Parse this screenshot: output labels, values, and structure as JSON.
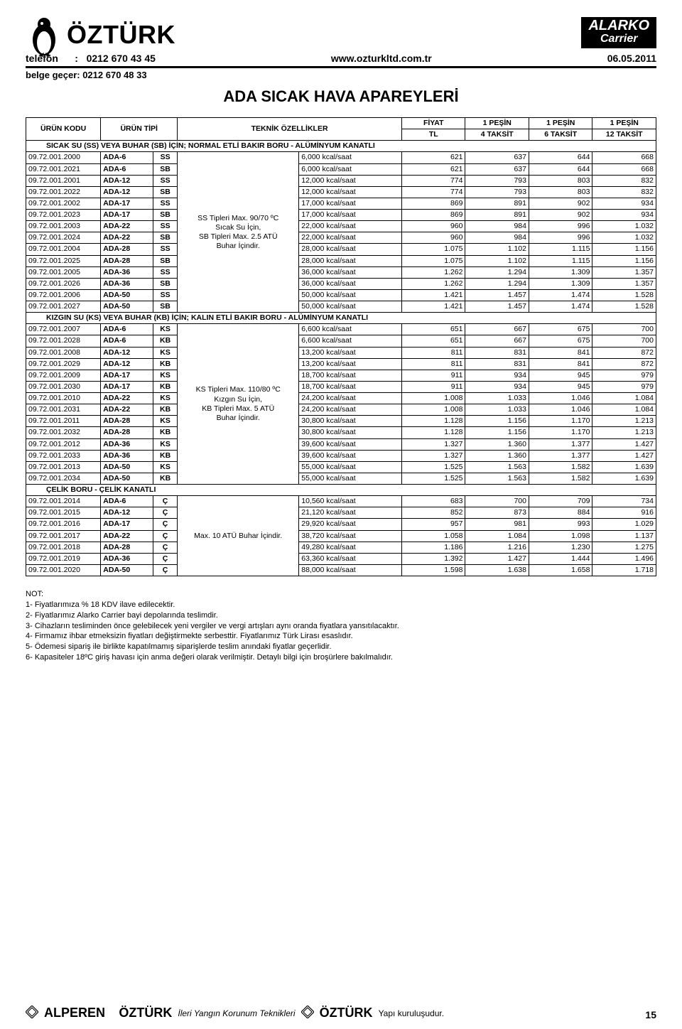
{
  "header": {
    "brand": "ÖZTÜRK",
    "alarko_l1": "ALARKO",
    "alarko_l2": "Carrier",
    "phone_label": "telefon",
    "phone_sep": ":",
    "phone": "0212 670 43 45",
    "url": "www.ozturkltd.com.tr",
    "date": "06.05.2011",
    "belge": "belge geçer: 0212 670 48 33",
    "title": "ADA SICAK HAVA APAREYLERİ"
  },
  "table": {
    "head": {
      "col_code": "ÜRÜN KODU",
      "col_type": "ÜRÜN TİPİ",
      "col_spec": "TEKNİK ÖZELLİKLER",
      "col_fiyat": "FİYAT",
      "col_fiyat2": "TL",
      "col_p1a": "1 PEŞİN",
      "col_p1b": "4 TAKSİT",
      "col_p2a": "1 PEŞİN",
      "col_p2b": "6 TAKSİT",
      "col_p3a": "1 PEŞİN",
      "col_p3b": "12 TAKSİT"
    },
    "section1_title": "SICAK SU (SS) VEYA BUHAR (SB) İÇİN; NORMAL ETLİ BAKIR BORU - ALÜMİNYUM KANATLI",
    "section1_spec_lines": [
      "SS Tipleri Max. 90/70 ºC",
      "Sıcak Su İçin,",
      "SB Tipleri Max. 2.5 ATÜ",
      "Buhar İçindir."
    ],
    "section1_spec_start": 4,
    "section1_rows": [
      {
        "code": "09.72.001.2000",
        "model": "ADA-6",
        "var": "SS",
        "cap": "6,000 kcal/saat",
        "p": [
          "621",
          "637",
          "644",
          "668"
        ]
      },
      {
        "code": "09.72.001.2021",
        "model": "ADA-6",
        "var": "SB",
        "cap": "6,000 kcal/saat",
        "p": [
          "621",
          "637",
          "644",
          "668"
        ]
      },
      {
        "code": "09.72.001.2001",
        "model": "ADA-12",
        "var": "SS",
        "cap": "12,000 kcal/saat",
        "p": [
          "774",
          "793",
          "803",
          "832"
        ]
      },
      {
        "code": "09.72.001.2022",
        "model": "ADA-12",
        "var": "SB",
        "cap": "12,000 kcal/saat",
        "p": [
          "774",
          "793",
          "803",
          "832"
        ]
      },
      {
        "code": "09.72.001.2002",
        "model": "ADA-17",
        "var": "SS",
        "cap": "17,000 kcal/saat",
        "p": [
          "869",
          "891",
          "902",
          "934"
        ]
      },
      {
        "code": "09.72.001.2023",
        "model": "ADA-17",
        "var": "SB",
        "cap": "17,000 kcal/saat",
        "p": [
          "869",
          "891",
          "902",
          "934"
        ]
      },
      {
        "code": "09.72.001.2003",
        "model": "ADA-22",
        "var": "SS",
        "cap": "22,000 kcal/saat",
        "p": [
          "960",
          "984",
          "996",
          "1.032"
        ]
      },
      {
        "code": "09.72.001.2024",
        "model": "ADA-22",
        "var": "SB",
        "cap": "22,000 kcal/saat",
        "p": [
          "960",
          "984",
          "996",
          "1.032"
        ]
      },
      {
        "code": "09.72.001.2004",
        "model": "ADA-28",
        "var": "SS",
        "cap": "28,000 kcal/saat",
        "p": [
          "1.075",
          "1.102",
          "1.115",
          "1.156"
        ]
      },
      {
        "code": "09.72.001.2025",
        "model": "ADA-28",
        "var": "SB",
        "cap": "28,000 kcal/saat",
        "p": [
          "1.075",
          "1.102",
          "1.115",
          "1.156"
        ]
      },
      {
        "code": "09.72.001.2005",
        "model": "ADA-36",
        "var": "SS",
        "cap": "36,000 kcal/saat",
        "p": [
          "1.262",
          "1.294",
          "1.309",
          "1.357"
        ]
      },
      {
        "code": "09.72.001.2026",
        "model": "ADA-36",
        "var": "SB",
        "cap": "36,000 kcal/saat",
        "p": [
          "1.262",
          "1.294",
          "1.309",
          "1.357"
        ]
      },
      {
        "code": "09.72.001.2006",
        "model": "ADA-50",
        "var": "SS",
        "cap": "50,000 kcal/saat",
        "p": [
          "1.421",
          "1.457",
          "1.474",
          "1.528"
        ]
      },
      {
        "code": "09.72.001.2027",
        "model": "ADA-50",
        "var": "SB",
        "cap": "50,000 kcal/saat",
        "p": [
          "1.421",
          "1.457",
          "1.474",
          "1.528"
        ]
      }
    ],
    "section2_title": "KIZGIN SU (KS) VEYA BUHAR (KB) İÇİN; KALIN ETLİ BAKIR BORU - ALÜMİNYUM KANATLI",
    "section2_spec_lines": [
      "KS Tipleri Max. 110/80 ºC",
      "Kızgın Su İçin,",
      "KB Tipleri Max. 5 ATÜ",
      "Buhar İçindir."
    ],
    "section2_spec_start": 4,
    "section2_rows": [
      {
        "code": "09.72.001.2007",
        "model": "ADA-6",
        "var": "KS",
        "cap": "6,600 kcal/saat",
        "p": [
          "651",
          "667",
          "675",
          "700"
        ]
      },
      {
        "code": "09.72.001.2028",
        "model": "ADA-6",
        "var": "KB",
        "cap": "6,600 kcal/saat",
        "p": [
          "651",
          "667",
          "675",
          "700"
        ]
      },
      {
        "code": "09.72.001.2008",
        "model": "ADA-12",
        "var": "KS",
        "cap": "13,200 kcal/saat",
        "p": [
          "811",
          "831",
          "841",
          "872"
        ]
      },
      {
        "code": "09.72.001.2029",
        "model": "ADA-12",
        "var": "KB",
        "cap": "13,200 kcal/saat",
        "p": [
          "811",
          "831",
          "841",
          "872"
        ]
      },
      {
        "code": "09.72.001.2009",
        "model": "ADA-17",
        "var": "KS",
        "cap": "18,700 kcal/saat",
        "p": [
          "911",
          "934",
          "945",
          "979"
        ]
      },
      {
        "code": "09.72.001.2030",
        "model": "ADA-17",
        "var": "KB",
        "cap": "18,700 kcal/saat",
        "p": [
          "911",
          "934",
          "945",
          "979"
        ]
      },
      {
        "code": "09.72.001.2010",
        "model": "ADA-22",
        "var": "KS",
        "cap": "24,200 kcal/saat",
        "p": [
          "1.008",
          "1.033",
          "1.046",
          "1.084"
        ]
      },
      {
        "code": "09.72.001.2031",
        "model": "ADA-22",
        "var": "KB",
        "cap": "24,200 kcal/saat",
        "p": [
          "1.008",
          "1.033",
          "1.046",
          "1.084"
        ]
      },
      {
        "code": "09.72.001.2011",
        "model": "ADA-28",
        "var": "KS",
        "cap": "30,800 kcal/saat",
        "p": [
          "1.128",
          "1.156",
          "1.170",
          "1.213"
        ]
      },
      {
        "code": "09.72.001.2032",
        "model": "ADA-28",
        "var": "KB",
        "cap": "30,800 kcal/saat",
        "p": [
          "1.128",
          "1.156",
          "1.170",
          "1.213"
        ]
      },
      {
        "code": "09.72.001.2012",
        "model": "ADA-36",
        "var": "KS",
        "cap": "39,600 kcal/saat",
        "p": [
          "1.327",
          "1.360",
          "1.377",
          "1.427"
        ]
      },
      {
        "code": "09.72.001.2033",
        "model": "ADA-36",
        "var": "KB",
        "cap": "39,600 kcal/saat",
        "p": [
          "1.327",
          "1.360",
          "1.377",
          "1.427"
        ]
      },
      {
        "code": "09.72.001.2013",
        "model": "ADA-50",
        "var": "KS",
        "cap": "55,000 kcal/saat",
        "p": [
          "1.525",
          "1.563",
          "1.582",
          "1.639"
        ]
      },
      {
        "code": "09.72.001.2034",
        "model": "ADA-50",
        "var": "KB",
        "cap": "55,000 kcal/saat",
        "p": [
          "1.525",
          "1.563",
          "1.582",
          "1.639"
        ]
      }
    ],
    "section3_title": "ÇELİK BORU - ÇELİK KANATLI",
    "section3_spec_lines": [
      "Max. 10 ATÜ Buhar İçindir."
    ],
    "section3_spec_start": 3,
    "section3_rows": [
      {
        "code": "09.72.001.2014",
        "model": "ADA-6",
        "var": "Ç",
        "cap": "10,560 kcal/saat",
        "p": [
          "683",
          "700",
          "709",
          "734"
        ]
      },
      {
        "code": "09.72.001.2015",
        "model": "ADA-12",
        "var": "Ç",
        "cap": "21,120 kcal/saat",
        "p": [
          "852",
          "873",
          "884",
          "916"
        ]
      },
      {
        "code": "09.72.001.2016",
        "model": "ADA-17",
        "var": "Ç",
        "cap": "29,920 kcal/saat",
        "p": [
          "957",
          "981",
          "993",
          "1.029"
        ]
      },
      {
        "code": "09.72.001.2017",
        "model": "ADA-22",
        "var": "Ç",
        "cap": "38,720 kcal/saat",
        "p": [
          "1.058",
          "1.084",
          "1.098",
          "1.137"
        ]
      },
      {
        "code": "09.72.001.2018",
        "model": "ADA-28",
        "var": "Ç",
        "cap": "49,280 kcal/saat",
        "p": [
          "1.186",
          "1.216",
          "1.230",
          "1.275"
        ]
      },
      {
        "code": "09.72.001.2019",
        "model": "ADA-36",
        "var": "Ç",
        "cap": "63,360 kcal/saat",
        "p": [
          "1.392",
          "1.427",
          "1.444",
          "1.496"
        ]
      },
      {
        "code": "09.72.001.2020",
        "model": "ADA-50",
        "var": "Ç",
        "cap": "88,000 kcal/saat",
        "p": [
          "1.598",
          "1.638",
          "1.658",
          "1.718"
        ]
      }
    ]
  },
  "notes": {
    "heading": "NOT:",
    "items": [
      "1- Fiyatlarımıza % 18 KDV ilave edilecektir.",
      "2- Fiyatlarımız Alarko Carrier bayi depolarında teslimdir.",
      "3- Cihazların tesliminden önce gelebilecek yeni vergiler ve vergi artışları aynı oranda fiyatlara yansıtılacaktır.",
      "4- Firmamız ihbar etmeksizin fiyatları değiştirmekte serbesttir. Fiyatlarımız Türk Lirası esaslıdır.",
      "5- Ödemesi sipariş ile birlikte kapatılmamış siparişlerde teslim anındaki fiyatlar geçerlidir.",
      "6- Kapasiteler 18ºC giriş havası için anma değeri olarak verilmiştir. Detaylı bilgi için broşürlere bakılmalıdır."
    ]
  },
  "footer": {
    "alperen": "ALPEREN",
    "brand2": "ÖZTÜRK",
    "text1": "İleri Yangın Korunum Teknikleri",
    "brand3": "ÖZTÜRK",
    "text3": "Yapı kuruluşudur.",
    "page_no": "15"
  }
}
